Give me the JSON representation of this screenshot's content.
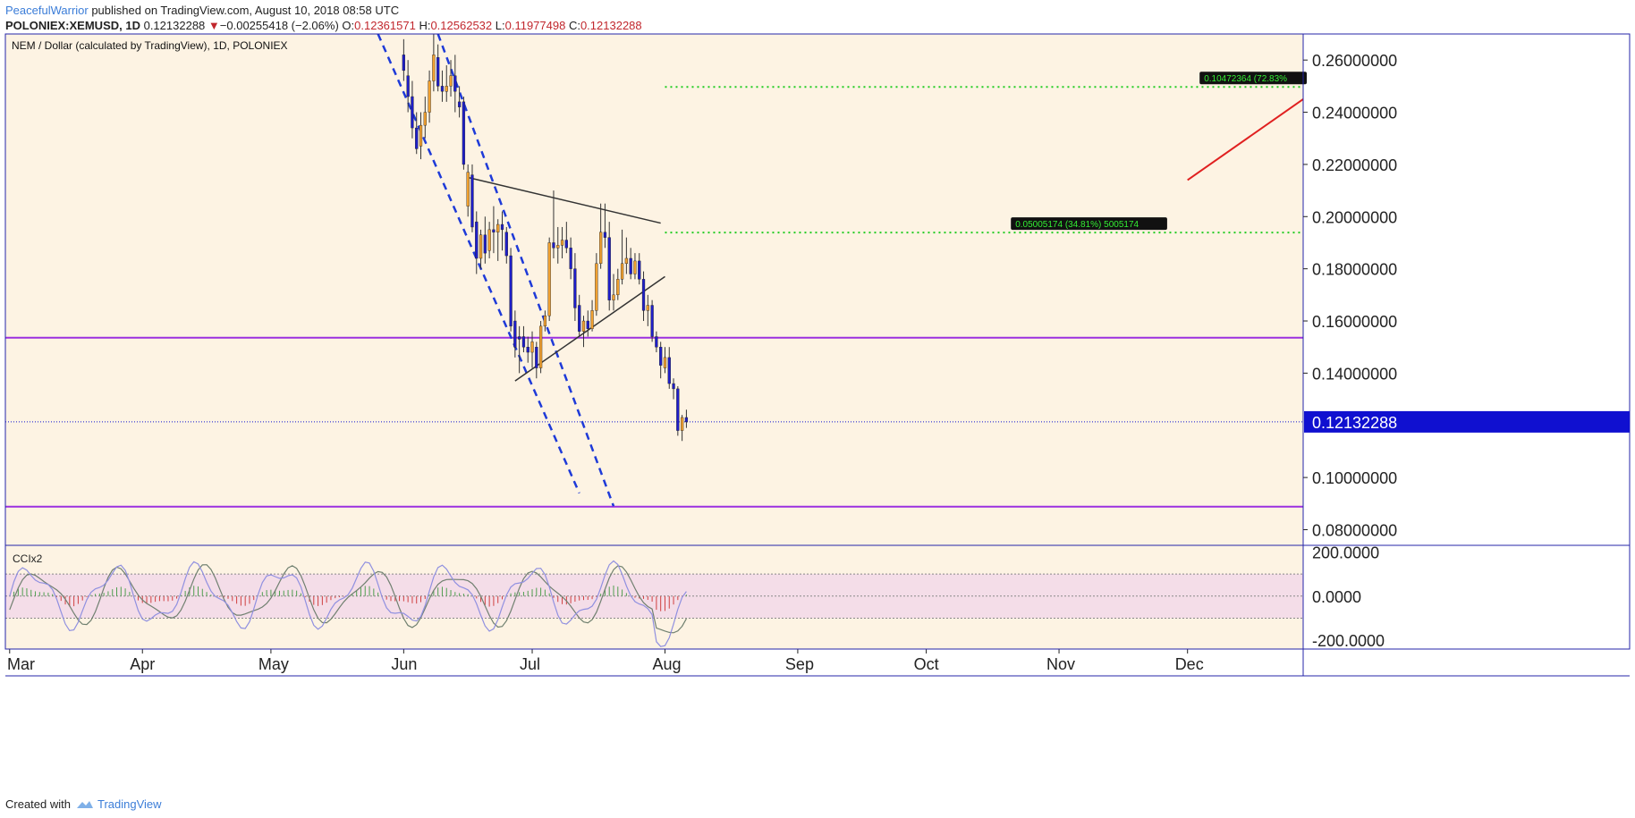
{
  "header": {
    "author": "PeacefulWarrior",
    "published_text": " published on TradingView.com, August 10, 2018 08:58 UTC",
    "symbol": "POLONIEX:XEMUSD, 1D",
    "last": "0.12132288",
    "change_arrow": "▼",
    "change": "−0.00255418 (−2.06%)",
    "o_label": "O:",
    "o": "0.12361571",
    "h_label": "H:",
    "h": "0.12562532",
    "l_label": "L:",
    "l": "0.11977498",
    "c_label": "C:",
    "c": "0.12132288"
  },
  "footer": {
    "created_with": "Created with",
    "brand": "TradingView"
  },
  "colors": {
    "background": "#fdf3e3",
    "frame": "#2424a8",
    "candle_down": "#1e1ec8",
    "candle_up": "#f0a030",
    "wick": "#333333",
    "channel": "#1e3ad8",
    "triangle": "#333333",
    "level": "#9b30e0",
    "target_dotted": "#22cc22",
    "target_arrow": "#e02020",
    "cci_band": "#f4dde8",
    "cci_line1": "#9090e0",
    "cci_line2": "#708070",
    "histogram_up": "#50a050",
    "histogram_down": "#d04040",
    "price_badge": "#1010d0"
  },
  "chart_data": {
    "type": "candlestick",
    "title": "NEM / Dollar (calculated by TradingView), 1D, POLONIEX",
    "x_tick_labels": [
      "Mar",
      "Apr",
      "May",
      "Jun",
      "Jul",
      "Aug",
      "Sep",
      "Oct",
      "Nov",
      "Dec"
    ],
    "x_tick_dates": [
      "2018-03-01",
      "2018-04-01",
      "2018-05-01",
      "2018-06-01",
      "2018-07-01",
      "2018-08-01",
      "2018-09-01",
      "2018-10-01",
      "2018-11-01",
      "2018-12-01"
    ],
    "xlim": [
      "2018-02-28",
      "2018-12-28"
    ],
    "y_tick_labels": [
      "0.26000000",
      "0.24000000",
      "0.22000000",
      "0.20000000",
      "0.18000000",
      "0.16000000",
      "0.14000000",
      "0.10000000",
      "0.08000000"
    ],
    "y_ticks": [
      0.26,
      0.24,
      0.22,
      0.2,
      0.18,
      0.16,
      0.14,
      0.1,
      0.08
    ],
    "ylim": [
      0.074,
      0.27
    ],
    "last_price": 0.12132288,
    "last_price_label": "0.12132288",
    "candles": [
      {
        "t": "2018-06-01",
        "o": 0.262,
        "h": 0.268,
        "l": 0.252,
        "c": 0.256
      },
      {
        "t": "2018-06-02",
        "o": 0.254,
        "h": 0.26,
        "l": 0.24,
        "c": 0.246
      },
      {
        "t": "2018-06-03",
        "o": 0.246,
        "h": 0.252,
        "l": 0.23,
        "c": 0.234
      },
      {
        "t": "2018-06-04",
        "o": 0.234,
        "h": 0.24,
        "l": 0.224,
        "c": 0.226
      },
      {
        "t": "2018-06-05",
        "o": 0.227,
        "h": 0.24,
        "l": 0.222,
        "c": 0.235
      },
      {
        "t": "2018-06-06",
        "o": 0.235,
        "h": 0.246,
        "l": 0.23,
        "c": 0.24
      },
      {
        "t": "2018-06-07",
        "o": 0.24,
        "h": 0.256,
        "l": 0.236,
        "c": 0.252
      },
      {
        "t": "2018-06-08",
        "o": 0.252,
        "h": 0.27,
        "l": 0.248,
        "c": 0.262
      },
      {
        "t": "2018-06-09",
        "o": 0.261,
        "h": 0.266,
        "l": 0.248,
        "c": 0.25
      },
      {
        "t": "2018-06-10",
        "o": 0.25,
        "h": 0.256,
        "l": 0.244,
        "c": 0.248
      },
      {
        "t": "2018-06-11",
        "o": 0.248,
        "h": 0.258,
        "l": 0.244,
        "c": 0.25
      },
      {
        "t": "2018-06-12",
        "o": 0.25,
        "h": 0.26,
        "l": 0.246,
        "c": 0.254
      },
      {
        "t": "2018-06-13",
        "o": 0.254,
        "h": 0.262,
        "l": 0.24,
        "c": 0.248
      },
      {
        "t": "2018-06-14",
        "o": 0.244,
        "h": 0.25,
        "l": 0.238,
        "c": 0.242
      },
      {
        "t": "2018-06-15",
        "o": 0.244,
        "h": 0.246,
        "l": 0.218,
        "c": 0.22
      },
      {
        "t": "2018-06-16",
        "o": 0.204,
        "h": 0.22,
        "l": 0.2,
        "c": 0.217
      },
      {
        "t": "2018-06-17",
        "o": 0.216,
        "h": 0.22,
        "l": 0.194,
        "c": 0.196
      },
      {
        "t": "2018-06-18",
        "o": 0.198,
        "h": 0.202,
        "l": 0.178,
        "c": 0.184
      },
      {
        "t": "2018-06-19",
        "o": 0.184,
        "h": 0.195,
        "l": 0.18,
        "c": 0.193
      },
      {
        "t": "2018-06-20",
        "o": 0.193,
        "h": 0.2,
        "l": 0.182,
        "c": 0.186
      },
      {
        "t": "2018-06-21",
        "o": 0.187,
        "h": 0.198,
        "l": 0.184,
        "c": 0.195
      },
      {
        "t": "2018-06-22",
        "o": 0.195,
        "h": 0.204,
        "l": 0.186,
        "c": 0.194
      },
      {
        "t": "2018-06-23",
        "o": 0.194,
        "h": 0.199,
        "l": 0.183,
        "c": 0.197
      },
      {
        "t": "2018-06-24",
        "o": 0.197,
        "h": 0.202,
        "l": 0.187,
        "c": 0.195
      },
      {
        "t": "2018-06-25",
        "o": 0.194,
        "h": 0.196,
        "l": 0.182,
        "c": 0.185
      },
      {
        "t": "2018-06-26",
        "o": 0.185,
        "h": 0.188,
        "l": 0.156,
        "c": 0.158
      },
      {
        "t": "2018-06-27",
        "o": 0.16,
        "h": 0.164,
        "l": 0.146,
        "c": 0.15
      },
      {
        "t": "2018-06-28",
        "o": 0.154,
        "h": 0.158,
        "l": 0.14,
        "c": 0.153
      },
      {
        "t": "2018-06-29",
        "o": 0.154,
        "h": 0.158,
        "l": 0.148,
        "c": 0.15
      },
      {
        "t": "2018-06-30",
        "o": 0.15,
        "h": 0.154,
        "l": 0.144,
        "c": 0.148
      },
      {
        "t": "2018-07-01",
        "o": 0.148,
        "h": 0.156,
        "l": 0.142,
        "c": 0.152
      },
      {
        "t": "2018-07-02",
        "o": 0.15,
        "h": 0.152,
        "l": 0.138,
        "c": 0.142
      },
      {
        "t": "2018-07-03",
        "o": 0.142,
        "h": 0.16,
        "l": 0.14,
        "c": 0.158
      },
      {
        "t": "2018-07-04",
        "o": 0.158,
        "h": 0.164,
        "l": 0.156,
        "c": 0.162
      },
      {
        "t": "2018-07-05",
        "o": 0.162,
        "h": 0.192,
        "l": 0.16,
        "c": 0.19
      },
      {
        "t": "2018-07-06",
        "o": 0.19,
        "h": 0.21,
        "l": 0.184,
        "c": 0.188
      },
      {
        "t": "2018-07-07",
        "o": 0.188,
        "h": 0.196,
        "l": 0.182,
        "c": 0.189
      },
      {
        "t": "2018-07-08",
        "o": 0.189,
        "h": 0.196,
        "l": 0.184,
        "c": 0.191
      },
      {
        "t": "2018-07-09",
        "o": 0.191,
        "h": 0.198,
        "l": 0.186,
        "c": 0.188
      },
      {
        "t": "2018-07-10",
        "o": 0.188,
        "h": 0.192,
        "l": 0.176,
        "c": 0.18
      },
      {
        "t": "2018-07-11",
        "o": 0.18,
        "h": 0.186,
        "l": 0.16,
        "c": 0.165
      },
      {
        "t": "2018-07-12",
        "o": 0.166,
        "h": 0.17,
        "l": 0.154,
        "c": 0.156
      },
      {
        "t": "2018-07-13",
        "o": 0.156,
        "h": 0.162,
        "l": 0.15,
        "c": 0.16
      },
      {
        "t": "2018-07-14",
        "o": 0.16,
        "h": 0.164,
        "l": 0.154,
        "c": 0.157
      },
      {
        "t": "2018-07-15",
        "o": 0.157,
        "h": 0.168,
        "l": 0.156,
        "c": 0.164
      },
      {
        "t": "2018-07-16",
        "o": 0.164,
        "h": 0.186,
        "l": 0.162,
        "c": 0.182
      },
      {
        "t": "2018-07-17",
        "o": 0.182,
        "h": 0.205,
        "l": 0.18,
        "c": 0.194
      },
      {
        "t": "2018-07-18",
        "o": 0.194,
        "h": 0.205,
        "l": 0.188,
        "c": 0.192
      },
      {
        "t": "2018-07-19",
        "o": 0.192,
        "h": 0.198,
        "l": 0.164,
        "c": 0.168
      },
      {
        "t": "2018-07-20",
        "o": 0.168,
        "h": 0.178,
        "l": 0.164,
        "c": 0.17
      },
      {
        "t": "2018-07-21",
        "o": 0.17,
        "h": 0.18,
        "l": 0.168,
        "c": 0.176
      },
      {
        "t": "2018-07-22",
        "o": 0.176,
        "h": 0.195,
        "l": 0.174,
        "c": 0.182
      },
      {
        "t": "2018-07-23",
        "o": 0.182,
        "h": 0.192,
        "l": 0.178,
        "c": 0.184
      },
      {
        "t": "2018-07-24",
        "o": 0.184,
        "h": 0.188,
        "l": 0.176,
        "c": 0.178
      },
      {
        "t": "2018-07-25",
        "o": 0.178,
        "h": 0.186,
        "l": 0.176,
        "c": 0.183
      },
      {
        "t": "2018-07-26",
        "o": 0.183,
        "h": 0.186,
        "l": 0.174,
        "c": 0.176
      },
      {
        "t": "2018-07-27",
        "o": 0.176,
        "h": 0.179,
        "l": 0.16,
        "c": 0.164
      },
      {
        "t": "2018-07-28",
        "o": 0.164,
        "h": 0.17,
        "l": 0.158,
        "c": 0.166
      },
      {
        "t": "2018-07-29",
        "o": 0.166,
        "h": 0.168,
        "l": 0.152,
        "c": 0.154
      },
      {
        "t": "2018-07-30",
        "o": 0.154,
        "h": 0.156,
        "l": 0.148,
        "c": 0.15
      },
      {
        "t": "2018-07-31",
        "o": 0.15,
        "h": 0.152,
        "l": 0.138,
        "c": 0.143
      },
      {
        "t": "2018-08-01",
        "o": 0.142,
        "h": 0.15,
        "l": 0.14,
        "c": 0.146
      },
      {
        "t": "2018-08-02",
        "o": 0.146,
        "h": 0.15,
        "l": 0.134,
        "c": 0.136
      },
      {
        "t": "2018-08-03",
        "o": 0.136,
        "h": 0.138,
        "l": 0.13,
        "c": 0.134
      },
      {
        "t": "2018-08-04",
        "o": 0.134,
        "h": 0.135,
        "l": 0.116,
        "c": 0.118
      },
      {
        "t": "2018-08-05",
        "o": 0.118,
        "h": 0.124,
        "l": 0.114,
        "c": 0.123
      },
      {
        "t": "2018-08-06",
        "o": 0.123,
        "h": 0.126,
        "l": 0.119,
        "c": 0.1213
      }
    ],
    "horizontal_levels": [
      0.1536,
      0.0888
    ],
    "triangle_lines": [
      {
        "from": {
          "t": "2018-06-16",
          "y": 0.215
        },
        "to": {
          "t": "2018-07-31",
          "y": 0.1975
        }
      },
      {
        "from": {
          "t": "2018-06-27",
          "y": 0.137
        },
        "to": {
          "t": "2018-08-01",
          "y": 0.177
        }
      }
    ],
    "channel_lines": [
      {
        "from": {
          "t": "2018-05-26",
          "y": 0.27
        },
        "to": {
          "t": "2018-07-12",
          "y": 0.094
        }
      },
      {
        "from": {
          "t": "2018-06-09",
          "y": 0.27
        },
        "to": {
          "t": "2018-07-20",
          "y": 0.089
        }
      }
    ],
    "targets": [
      {
        "label": "0.05005174 (34.81%) 5005174",
        "y": 0.1939,
        "from_t": "2018-08-01",
        "label_t": "2018-11-08"
      },
      {
        "label": "0.10472364 (72.83%",
        "y": 0.2497,
        "from_t": "2018-08-01",
        "label_t": "2018-12-20"
      }
    ],
    "target_arrow": {
      "from": {
        "t": "2018-12-01",
        "y": 0.214
      },
      "to": {
        "t": "2018-12-28",
        "y": 0.245
      }
    },
    "indicator": {
      "name": "CCIx2",
      "y_tick_labels": [
        "200.0000",
        "0.0000",
        "-200.0000"
      ],
      "y_ticks": [
        200,
        0,
        -200
      ],
      "ylim": [
        -240,
        230
      ],
      "band": [
        100,
        -100
      ]
    }
  }
}
